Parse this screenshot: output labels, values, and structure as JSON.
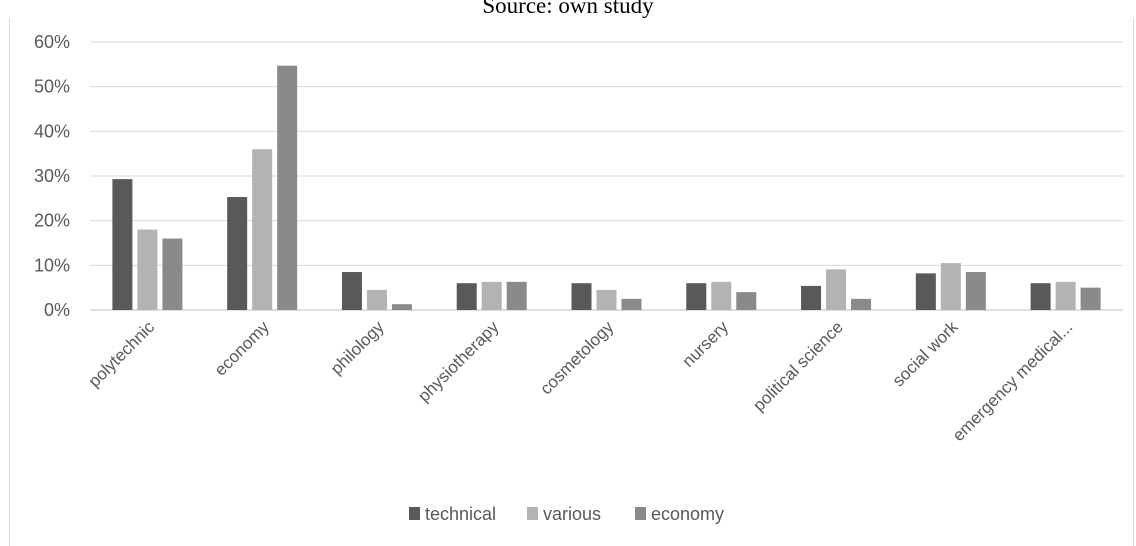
{
  "caption": "Source: own study",
  "chart_data": {
    "type": "bar",
    "categories": [
      "polytechnic",
      "economy",
      "philology",
      "physiotherapy",
      "cosmetology",
      "nursery",
      "political science",
      "social work",
      "emergency medical..."
    ],
    "series": [
      {
        "name": "technical",
        "color": "#595959",
        "values": [
          29.3,
          25.3,
          8.5,
          6.0,
          6.0,
          6.0,
          5.4,
          8.2,
          6.0
        ]
      },
      {
        "name": "various",
        "color": "#b3b3b3",
        "values": [
          18.0,
          36.0,
          4.5,
          6.3,
          4.5,
          6.3,
          9.1,
          10.5,
          6.3
        ]
      },
      {
        "name": "economy",
        "color": "#8a8a8a",
        "values": [
          16.0,
          54.7,
          1.3,
          6.3,
          2.5,
          4.0,
          2.5,
          8.5,
          5.0
        ]
      }
    ],
    "y_ticks": [
      "0%",
      "10%",
      "20%",
      "30%",
      "40%",
      "50%",
      "60%"
    ],
    "ylim": [
      0,
      60
    ],
    "unit": "%",
    "grid": true,
    "legend_position": "bottom"
  }
}
